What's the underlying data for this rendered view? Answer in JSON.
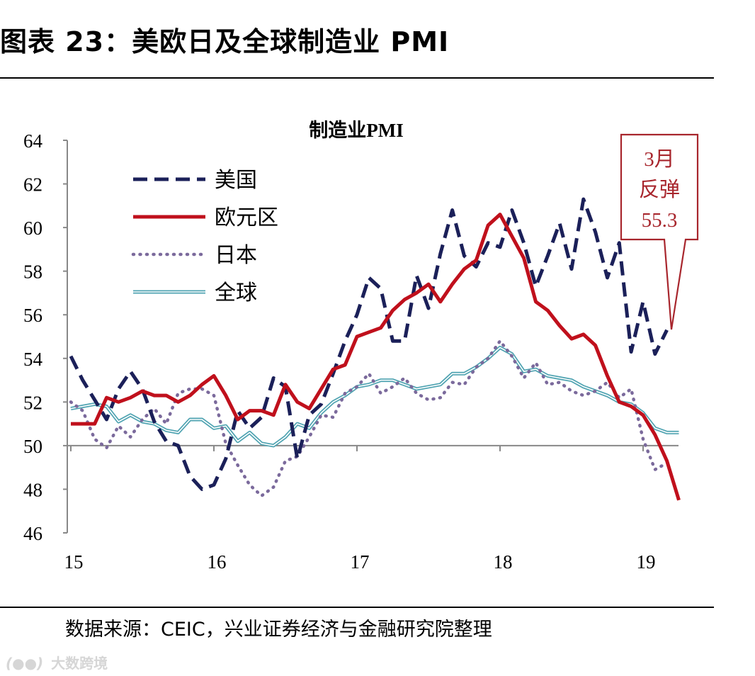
{
  "figure_title": "图表 23：美欧日及全球制造业 PMI",
  "source": "数据来源：CEIC，兴业证券经济与金融研究院整理",
  "watermark": "大数跨境",
  "colors": {
    "us": "#1b2059",
    "eu": "#c0101c",
    "jp": "#7b6a9c",
    "gl": "#4fa3b1",
    "callout": "#a8262d"
  },
  "chart_data": {
    "type": "line",
    "title": "制造业PMI",
    "xlabel": "",
    "ylabel": "",
    "ylim": [
      46,
      64
    ],
    "yticks": [
      "46",
      "48",
      "50",
      "52",
      "54",
      "56",
      "58",
      "60",
      "62",
      "64"
    ],
    "reference_line": 50,
    "x_start": 2015.0,
    "x_step": 0.08333,
    "xticks": [
      {
        "label": "15",
        "x": 2015
      },
      {
        "label": "16",
        "x": 2016
      },
      {
        "label": "17",
        "x": 2017
      },
      {
        "label": "18",
        "x": 2018
      },
      {
        "label": "19",
        "x": 2019
      }
    ],
    "legend_position": "top-left",
    "series": [
      {
        "key": "us",
        "name": "美国",
        "style": "dashed",
        "values": [
          54.1,
          53.0,
          52.1,
          51.2,
          52.6,
          53.4,
          52.6,
          51.1,
          50.2,
          50.0,
          48.6,
          48.0,
          48.2,
          49.4,
          51.6,
          50.8,
          51.3,
          53.1,
          52.7,
          49.4,
          51.4,
          51.9,
          53.3,
          54.8,
          56.0,
          57.7,
          57.2,
          54.8,
          54.8,
          57.8,
          56.3,
          58.8,
          60.8,
          58.7,
          58.2,
          59.3,
          59.1,
          60.8,
          59.3,
          57.3,
          58.7,
          60.2,
          58.1,
          61.3,
          59.8,
          57.7,
          59.3,
          54.3,
          56.6,
          54.2,
          55.3
        ]
      },
      {
        "key": "eu",
        "name": "欧元区",
        "style": "solid",
        "values": [
          51.0,
          51.0,
          51.0,
          52.2,
          52.0,
          52.2,
          52.5,
          52.3,
          52.3,
          52.0,
          52.3,
          52.8,
          53.2,
          52.3,
          51.2,
          51.6,
          51.6,
          51.4,
          52.8,
          52.0,
          51.7,
          52.6,
          53.5,
          53.7,
          55.0,
          55.2,
          55.4,
          56.2,
          56.7,
          57.0,
          57.4,
          56.6,
          57.4,
          58.1,
          58.5,
          60.1,
          60.6,
          59.6,
          58.6,
          56.6,
          56.2,
          55.5,
          54.9,
          55.1,
          54.6,
          53.2,
          52.0,
          51.8,
          51.4,
          50.5,
          49.3,
          47.5
        ]
      },
      {
        "key": "jp",
        "name": "日本",
        "style": "dotted",
        "values": [
          52.0,
          51.6,
          50.3,
          49.9,
          50.9,
          50.4,
          51.2,
          51.7,
          51.0,
          52.4,
          52.6,
          52.6,
          52.3,
          50.1,
          49.1,
          48.2,
          47.7,
          48.1,
          49.3,
          49.5,
          50.4,
          51.4,
          51.3,
          52.4,
          52.7,
          53.3,
          52.4,
          52.7,
          53.1,
          52.4,
          52.1,
          52.2,
          52.9,
          52.8,
          53.6,
          54.0,
          54.8,
          54.1,
          53.1,
          53.8,
          52.8,
          52.9,
          52.5,
          52.3,
          52.5,
          52.9,
          52.2,
          52.6,
          50.3,
          48.9,
          49.2
        ]
      },
      {
        "key": "gl",
        "name": "全球",
        "style": "double",
        "values": [
          51.7,
          51.8,
          51.9,
          51.8,
          51.1,
          51.4,
          51.1,
          51.0,
          50.7,
          50.6,
          51.2,
          51.2,
          50.8,
          50.9,
          50.2,
          50.6,
          50.1,
          50.0,
          50.4,
          51.0,
          50.8,
          51.5,
          52.0,
          52.3,
          52.7,
          52.8,
          53.0,
          53.0,
          52.8,
          52.6,
          52.7,
          52.8,
          53.3,
          53.3,
          53.6,
          54.0,
          54.5,
          54.2,
          53.4,
          53.5,
          53.2,
          53.1,
          53.0,
          52.7,
          52.5,
          52.3,
          52.0,
          51.9,
          51.5,
          50.8,
          50.6,
          50.6
        ]
      }
    ],
    "callout": {
      "lines": [
        "3月",
        "反弹",
        "55.3"
      ]
    }
  }
}
